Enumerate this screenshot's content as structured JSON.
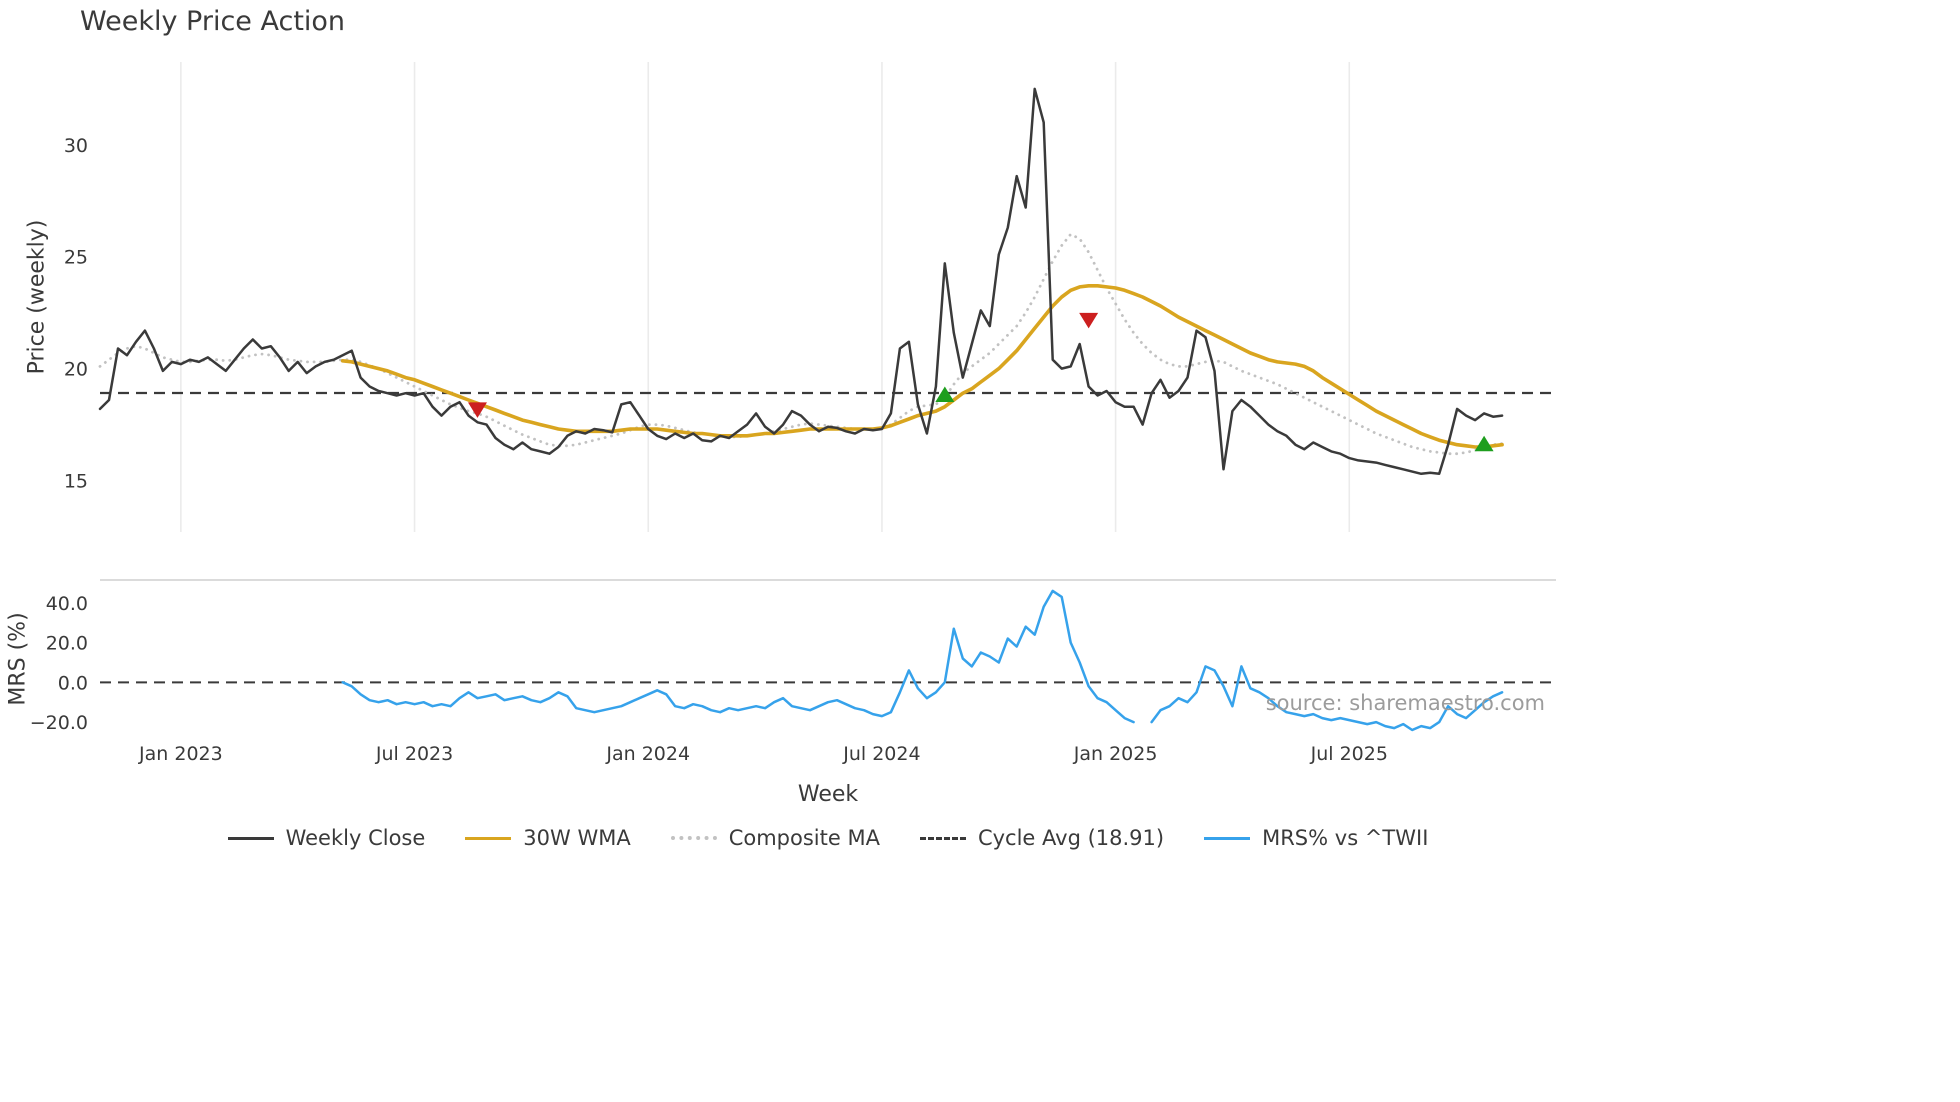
{
  "chart_data": {
    "type": "line",
    "title": "Weekly Price Action",
    "xlabel": "Week",
    "ylabel_price": "Price (weekly)",
    "ylabel_mrs": "MRS (%)",
    "watermark": "source: sharemaestro.com",
    "x_domain_weeks": [
      0,
      162
    ],
    "x_ticks": {
      "weeks": [
        9,
        35,
        61,
        87,
        113,
        139
      ],
      "labels": [
        "Jan 2023",
        "Jul 2023",
        "Jan 2024",
        "Jul 2024",
        "Jan 2025",
        "Jul 2025"
      ]
    },
    "price_panel": {
      "ylim": [
        12.7,
        33.7
      ],
      "yticks": [
        15,
        20,
        25,
        30
      ],
      "ytick_labels": [
        "15",
        "20",
        "25",
        "30"
      ]
    },
    "mrs_panel": {
      "ylim": [
        -27.5,
        51.5
      ],
      "yticks": [
        40,
        20,
        0,
        -20
      ],
      "ytick_labels": [
        "40.0",
        "20.0",
        "0.0",
        "−20.0"
      ]
    },
    "cycle_line": {
      "name": "Cycle Avg (18.91)",
      "value": 18.91,
      "color": "#3a3a3a",
      "style": "dashed"
    },
    "zero_line": {
      "value": 0,
      "color": "#3a3a3a",
      "style": "dashed"
    },
    "series": [
      {
        "id": "composite_ma",
        "name": "Composite MA",
        "panel": "price",
        "color": "#c2c2c2",
        "style": "dotted",
        "width": 2.8,
        "start_week": 0,
        "values": [
          20.1,
          20.4,
          20.7,
          20.9,
          21.0,
          20.9,
          20.7,
          20.5,
          20.4,
          20.3,
          20.3,
          20.35,
          20.4,
          20.4,
          20.35,
          20.4,
          20.5,
          20.6,
          20.65,
          20.6,
          20.5,
          20.4,
          20.35,
          20.3,
          20.3,
          20.3,
          20.35,
          20.4,
          20.4,
          20.3,
          20.15,
          20.0,
          19.8,
          19.6,
          19.4,
          19.2,
          19.0,
          18.8,
          18.6,
          18.4,
          18.25,
          18.1,
          18.0,
          17.85,
          17.65,
          17.45,
          17.25,
          17.05,
          16.9,
          16.75,
          16.6,
          16.55,
          16.55,
          16.6,
          16.7,
          16.8,
          16.9,
          17.0,
          17.1,
          17.25,
          17.4,
          17.5,
          17.5,
          17.45,
          17.35,
          17.25,
          17.15,
          17.1,
          17.05,
          17.0,
          16.95,
          16.95,
          17.0,
          17.05,
          17.1,
          17.2,
          17.3,
          17.4,
          17.5,
          17.55,
          17.5,
          17.45,
          17.4,
          17.35,
          17.3,
          17.3,
          17.3,
          17.35,
          17.5,
          17.8,
          18.1,
          18.3,
          18.35,
          18.4,
          18.7,
          19.3,
          19.8,
          20.1,
          20.4,
          20.7,
          21.1,
          21.5,
          21.9,
          22.5,
          23.2,
          24.0,
          24.8,
          25.5,
          26.0,
          25.8,
          25.2,
          24.4,
          23.6,
          22.9,
          22.2,
          21.6,
          21.1,
          20.7,
          20.4,
          20.2,
          20.1,
          20.1,
          20.2,
          20.3,
          20.35,
          20.3,
          20.1,
          19.9,
          19.75,
          19.6,
          19.45,
          19.3,
          19.1,
          18.9,
          18.7,
          18.5,
          18.3,
          18.1,
          17.9,
          17.7,
          17.5,
          17.3,
          17.1,
          16.95,
          16.8,
          16.65,
          16.5,
          16.4,
          16.3,
          16.25,
          16.2,
          16.2,
          16.25,
          16.35,
          16.5,
          16.6,
          16.65
        ]
      },
      {
        "id": "wma30",
        "name": "30W WMA",
        "panel": "price",
        "color": "#d9a51f",
        "style": "solid",
        "width": 3.6,
        "start_week": 27,
        "values": [
          20.35,
          20.3,
          20.2,
          20.1,
          20.0,
          19.9,
          19.75,
          19.6,
          19.5,
          19.35,
          19.2,
          19.05,
          18.9,
          18.75,
          18.6,
          18.45,
          18.3,
          18.15,
          18.0,
          17.85,
          17.7,
          17.6,
          17.5,
          17.4,
          17.3,
          17.25,
          17.2,
          17.2,
          17.2,
          17.2,
          17.2,
          17.25,
          17.3,
          17.3,
          17.3,
          17.3,
          17.25,
          17.2,
          17.15,
          17.1,
          17.1,
          17.05,
          17.0,
          17.0,
          17.0,
          17.0,
          17.05,
          17.1,
          17.1,
          17.15,
          17.2,
          17.25,
          17.3,
          17.3,
          17.3,
          17.3,
          17.3,
          17.3,
          17.3,
          17.3,
          17.35,
          17.45,
          17.6,
          17.75,
          17.9,
          18.0,
          18.1,
          18.3,
          18.6,
          18.9,
          19.1,
          19.4,
          19.7,
          20.0,
          20.4,
          20.8,
          21.3,
          21.8,
          22.3,
          22.8,
          23.2,
          23.5,
          23.65,
          23.7,
          23.7,
          23.65,
          23.6,
          23.5,
          23.35,
          23.2,
          23.0,
          22.8,
          22.55,
          22.3,
          22.1,
          21.9,
          21.7,
          21.5,
          21.3,
          21.1,
          20.9,
          20.7,
          20.55,
          20.4,
          20.3,
          20.25,
          20.2,
          20.1,
          19.9,
          19.6,
          19.35,
          19.1,
          18.85,
          18.6,
          18.35,
          18.1,
          17.9,
          17.7,
          17.5,
          17.3,
          17.1,
          16.95,
          16.8,
          16.7,
          16.6,
          16.55,
          16.5,
          16.5,
          16.55,
          16.6
        ]
      },
      {
        "id": "weekly_close",
        "name": "Weekly Close",
        "panel": "price",
        "color": "#3a3a3a",
        "style": "solid",
        "width": 2.5,
        "start_week": 0,
        "values": [
          18.2,
          18.6,
          20.9,
          20.6,
          21.2,
          21.7,
          20.9,
          19.9,
          20.3,
          20.2,
          20.4,
          20.3,
          20.5,
          20.2,
          19.9,
          20.4,
          20.9,
          21.3,
          20.9,
          21.0,
          20.5,
          19.9,
          20.3,
          19.8,
          20.1,
          20.3,
          20.4,
          20.6,
          20.8,
          19.6,
          19.2,
          19.0,
          18.9,
          18.8,
          18.9,
          18.8,
          18.9,
          18.3,
          17.9,
          18.3,
          18.5,
          17.9,
          17.6,
          17.5,
          16.9,
          16.6,
          16.4,
          16.7,
          16.4,
          16.3,
          16.2,
          16.5,
          17.0,
          17.2,
          17.1,
          17.3,
          17.25,
          17.15,
          18.4,
          18.5,
          17.9,
          17.3,
          17.0,
          16.85,
          17.1,
          16.9,
          17.1,
          16.8,
          16.75,
          17.0,
          16.9,
          17.2,
          17.5,
          18.0,
          17.4,
          17.1,
          17.5,
          18.1,
          17.9,
          17.5,
          17.2,
          17.4,
          17.35,
          17.2,
          17.1,
          17.3,
          17.25,
          17.3,
          18.0,
          20.9,
          21.2,
          18.4,
          17.1,
          19.2,
          24.7,
          21.6,
          19.6,
          21.1,
          22.6,
          21.9,
          25.1,
          26.3,
          28.6,
          27.2,
          32.5,
          31.0,
          20.4,
          20.0,
          20.1,
          21.1,
          19.2,
          18.8,
          19.0,
          18.5,
          18.3,
          18.3,
          17.5,
          18.9,
          19.5,
          18.7,
          19.0,
          19.6,
          21.7,
          21.4,
          19.9,
          15.5,
          18.1,
          18.6,
          18.3,
          17.9,
          17.5,
          17.2,
          17.0,
          16.6,
          16.4,
          16.7,
          16.5,
          16.3,
          16.2,
          16.0,
          15.9,
          15.85,
          15.8,
          15.7,
          15.6,
          15.5,
          15.4,
          15.3,
          15.35,
          15.3,
          16.6,
          18.2,
          17.9,
          17.7,
          18.0,
          17.85,
          17.9
        ]
      },
      {
        "id": "mrs",
        "name": "MRS% vs ^TWII",
        "panel": "mrs",
        "color": "#36a2eb",
        "style": "solid",
        "width": 2.5,
        "start_week": 27,
        "values": [
          0,
          -2,
          -6,
          -9,
          -10,
          -9,
          -11,
          -10,
          -11,
          -10,
          -12,
          -11,
          -12,
          -8,
          -5,
          -8,
          -7,
          -6,
          -9,
          -8,
          -7,
          -9,
          -10,
          -8,
          -5,
          -7,
          -13,
          -14,
          -15,
          -14,
          -13,
          -12,
          -10,
          -8,
          -6,
          -4,
          -6,
          -12,
          -13,
          -11,
          -12,
          -14,
          -15,
          -13,
          -14,
          -13,
          -12,
          -13,
          -10,
          -8,
          -12,
          -13,
          -14,
          -12,
          -10,
          -9,
          -11,
          -13,
          -14,
          -16,
          -17,
          -15,
          -5,
          6,
          -3,
          -8,
          -5,
          0,
          27,
          12,
          8,
          15,
          13,
          10,
          22,
          18,
          28,
          24,
          38,
          46,
          43,
          20,
          10,
          -2,
          -8,
          -10,
          -14,
          -18,
          -20,
          null,
          -20,
          -14,
          -12,
          -8,
          -10,
          -5,
          8,
          6,
          -2,
          -12,
          8,
          -3,
          -5,
          -8,
          -12,
          -15,
          -16,
          -17,
          -16,
          -18,
          -19,
          -18,
          -19,
          -20,
          -21,
          -20,
          -22,
          -23,
          -21,
          -24,
          -22,
          -23,
          -20,
          -12,
          -16,
          -18,
          -14,
          -10,
          -7,
          -5
        ]
      }
    ],
    "markers": [
      {
        "type": "sell",
        "week": 42,
        "price": 18.2,
        "color": "#cc1f1f"
      },
      {
        "type": "buy",
        "week": 94,
        "price": 18.8,
        "color": "#1e9e1e"
      },
      {
        "type": "sell",
        "week": 110,
        "price": 22.2,
        "color": "#cc1f1f"
      },
      {
        "type": "buy",
        "week": 154,
        "price": 16.6,
        "color": "#1e9e1e"
      }
    ],
    "legend": [
      {
        "label": "Weekly Close",
        "color": "#3a3a3a",
        "style": "solid"
      },
      {
        "label": "30W WMA",
        "color": "#d9a51f",
        "style": "solid"
      },
      {
        "label": "Composite MA",
        "color": "#c2c2c2",
        "style": "dotted"
      },
      {
        "label": "Cycle Avg (18.91)",
        "color": "#3a3a3a",
        "style": "dashed"
      },
      {
        "label": "MRS% vs ^TWII",
        "color": "#36a2eb",
        "style": "solid"
      }
    ],
    "colors": {
      "gridline": "#ebebeb",
      "panel_border": "#cfcfcf",
      "text": "#3a3a3a",
      "watermark": "#9c9c9c"
    }
  }
}
